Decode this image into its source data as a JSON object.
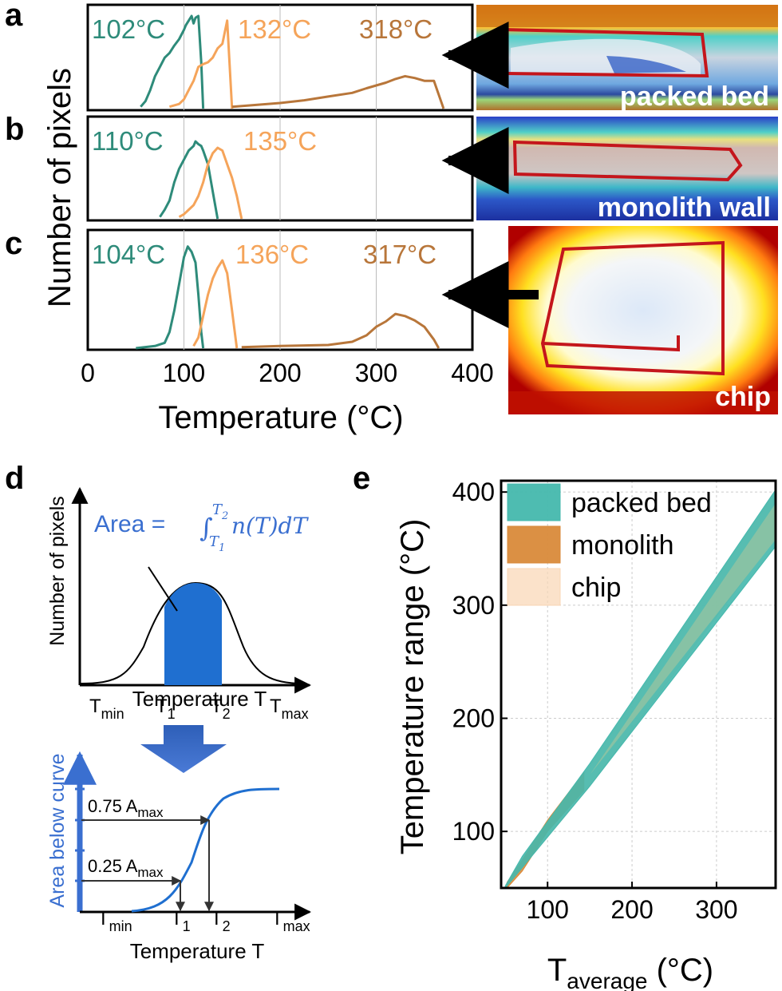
{
  "panel_labels": {
    "a": "a",
    "b": "b",
    "c": "c",
    "d": "d",
    "e": "e"
  },
  "colors": {
    "teal": "#2e8b7a",
    "orange": "#f5a45a",
    "brown": "#b8763a",
    "blue": "#2f6fd6",
    "bandTeal": "#45b8ad",
    "bandOrange": "#d98a3a",
    "bandPeach": "#fad6b4",
    "red": "#c4161c"
  },
  "top_charts": {
    "ylabel": "Number of pixels",
    "xlabel": "Temperature (°C)",
    "xticks": [
      "0",
      "100",
      "200",
      "300",
      "400"
    ],
    "xlim": [
      0,
      400
    ],
    "rows": [
      {
        "id": "a",
        "annotations": [
          {
            "text": "102°C",
            "color": "teal"
          },
          {
            "text": "132°C",
            "color": "orange"
          },
          {
            "text": "318°C",
            "color": "brown"
          }
        ],
        "image_label": "packed bed"
      },
      {
        "id": "b",
        "annotations": [
          {
            "text": "110°C",
            "color": "teal"
          },
          {
            "text": "135°C",
            "color": "orange"
          }
        ],
        "image_label": "monolith wall"
      },
      {
        "id": "c",
        "annotations": [
          {
            "text": "104°C",
            "color": "teal"
          },
          {
            "text": "136°C",
            "color": "orange"
          },
          {
            "text": "317°C",
            "color": "brown"
          }
        ],
        "image_label": "chip"
      }
    ]
  },
  "chart_data": [
    {
      "type": "line",
      "panel": "a",
      "xlabel": "Temperature (°C)",
      "ylabel": "Number of pixels",
      "xlim": [
        0,
        400
      ],
      "series": [
        {
          "color": "teal",
          "x": [
            55,
            60,
            65,
            70,
            75,
            80,
            85,
            90,
            95,
            100,
            102,
            105,
            108,
            110,
            112,
            115,
            118,
            120
          ],
          "y": [
            0.02,
            0.08,
            0.2,
            0.35,
            0.45,
            0.55,
            0.6,
            0.68,
            0.75,
            0.85,
            0.9,
            0.95,
            1.0,
            0.92,
            0.98,
            1.0,
            0.5,
            0
          ]
        },
        {
          "color": "orange",
          "x": [
            85,
            95,
            100,
            105,
            110,
            115,
            120,
            125,
            130,
            135,
            140,
            145,
            150
          ],
          "y": [
            0.02,
            0.05,
            0.1,
            0.2,
            0.3,
            0.45,
            0.48,
            0.5,
            0.55,
            0.65,
            0.7,
            0.95,
            0
          ]
        },
        {
          "color": "brown",
          "x": [
            150,
            175,
            200,
            225,
            250,
            275,
            290,
            300,
            310,
            320,
            330,
            340,
            350,
            360,
            370
          ],
          "y": [
            0.02,
            0.04,
            0.06,
            0.09,
            0.13,
            0.17,
            0.22,
            0.25,
            0.28,
            0.32,
            0.35,
            0.33,
            0.3,
            0.3,
            0
          ]
        }
      ]
    },
    {
      "type": "line",
      "panel": "b",
      "xlabel": "Temperature (°C)",
      "ylabel": "Number of pixels",
      "xlim": [
        0,
        400
      ],
      "series": [
        {
          "color": "teal",
          "x": [
            75,
            80,
            85,
            90,
            95,
            100,
            105,
            110,
            112,
            115,
            118,
            120,
            125,
            130,
            135
          ],
          "y": [
            0.02,
            0.1,
            0.2,
            0.4,
            0.55,
            0.65,
            0.75,
            0.8,
            0.85,
            0.82,
            0.8,
            0.75,
            0.6,
            0.3,
            0
          ]
        },
        {
          "color": "orange",
          "x": [
            95,
            100,
            105,
            110,
            115,
            120,
            125,
            130,
            135,
            140,
            145,
            150,
            155,
            160
          ],
          "y": [
            0.02,
            0.05,
            0.1,
            0.15,
            0.25,
            0.4,
            0.6,
            0.72,
            0.78,
            0.75,
            0.6,
            0.45,
            0.25,
            0
          ]
        }
      ]
    },
    {
      "type": "line",
      "panel": "c",
      "xlabel": "Temperature (°C)",
      "ylabel": "Number of pixels",
      "xlim": [
        0,
        400
      ],
      "series": [
        {
          "color": "teal",
          "x": [
            50,
            70,
            80,
            85,
            90,
            95,
            100,
            104,
            108,
            112,
            115,
            118,
            120
          ],
          "y": [
            0,
            0.02,
            0.05,
            0.15,
            0.35,
            0.6,
            0.85,
            0.95,
            0.9,
            0.8,
            0.5,
            0.15,
            0
          ]
        },
        {
          "color": "orange",
          "x": [
            110,
            115,
            120,
            125,
            130,
            135,
            140,
            145,
            150,
            155
          ],
          "y": [
            0.02,
            0.1,
            0.3,
            0.5,
            0.65,
            0.75,
            0.82,
            0.7,
            0.35,
            0
          ]
        },
        {
          "color": "brown",
          "x": [
            160,
            200,
            250,
            275,
            290,
            300,
            310,
            320,
            330,
            340,
            350,
            360,
            365
          ],
          "y": [
            0.01,
            0.02,
            0.03,
            0.06,
            0.12,
            0.2,
            0.25,
            0.32,
            0.3,
            0.26,
            0.2,
            0.08,
            0
          ]
        }
      ]
    },
    {
      "type": "area",
      "panel": "e",
      "xlabel": "T_average (°C)",
      "ylabel": "Temperature range (°C)",
      "xlim": [
        45,
        370
      ],
      "ylim": [
        50,
        410
      ],
      "xticks": [
        100,
        200,
        300
      ],
      "yticks": [
        100,
        200,
        300,
        400
      ],
      "grid": true,
      "legend": "top-left",
      "series": [
        {
          "name": "packed bed",
          "color": "bandTeal",
          "x": [
            50,
            70,
            150,
            370
          ],
          "lower": [
            50,
            68,
            140,
            352
          ],
          "upper": [
            52,
            78,
            160,
            402
          ]
        },
        {
          "name": "monolith",
          "color": "bandOrange",
          "x": [
            52,
            70,
            100,
            143
          ],
          "lower": [
            50,
            65,
            100,
            136
          ],
          "upper": [
            55,
            75,
            110,
            152
          ]
        },
        {
          "name": "chip",
          "color": "bandPeach",
          "x": [
            50,
            150,
            370
          ],
          "lower": [
            50,
            140,
            360
          ],
          "upper": [
            52,
            158,
            400
          ]
        }
      ]
    }
  ],
  "panel_d": {
    "ylabel1": "Number of pixels",
    "area_label": "Area = ",
    "integral_sym": "∫",
    "int_upper": "T",
    "int_upper_sub": "2",
    "int_lower": "T",
    "int_lower_sub": "1",
    "integrand": "n(T)dT",
    "xtick_tmin": "T",
    "xtick_tmin_sub": "min",
    "xtick_t1": "T",
    "xtick_t1_sub": "1",
    "xtick_t2": "T",
    "xtick_t2_sub": "2",
    "xtick_tmax": "T",
    "xtick_tmax_sub": "max",
    "xlabel": "Temperature T",
    "ylabel2": "Area below curve",
    "amax_75": "0.75 A",
    "amax_75_sub": "max",
    "amax_25": "0.25 A",
    "amax_25_sub": "max"
  },
  "panel_e": {
    "xlabel_main": "T",
    "xlabel_sub": "average",
    "xlabel_unit": " (°C)",
    "ylabel": "Temperature range (°C)",
    "xticks": [
      "100",
      "200",
      "300"
    ],
    "yticks": [
      "100",
      "200",
      "300",
      "400"
    ],
    "legend": [
      "packed bed",
      "monolith",
      "chip"
    ]
  }
}
